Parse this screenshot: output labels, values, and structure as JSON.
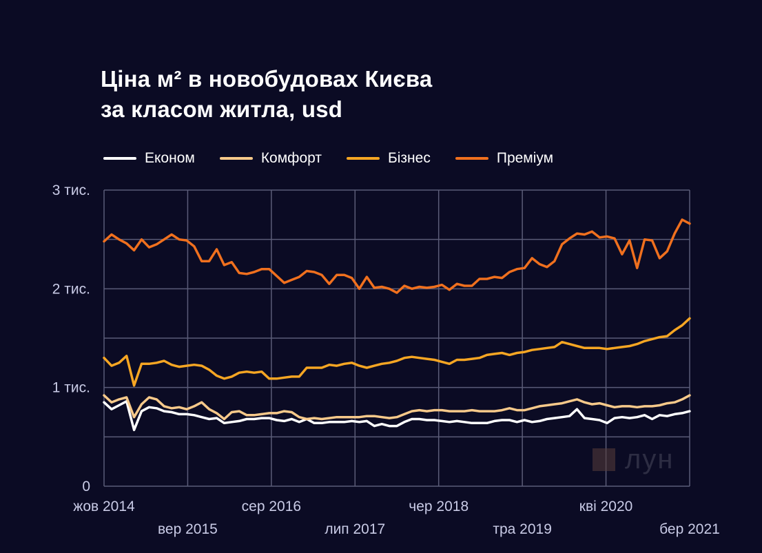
{
  "title": {
    "line1": "Ціна м² в новобудовах Києва",
    "line2": "за класом житла, usd"
  },
  "watermark": {
    "text": "лун"
  },
  "colors": {
    "background": "#0b0b24",
    "grid": "#5b5c78",
    "economy": "#ffffff",
    "comfort": "#f7c98a",
    "business": "#f6a623",
    "premium": "#f0701e"
  },
  "chart_data": {
    "type": "line",
    "title": "Ціна м² в новобудовах Києва за класом житла, usd",
    "x_start": "жов 2014",
    "x_end": "бер 2021",
    "x_tick_labels_top": [
      "жов 2014",
      "сер 2016",
      "чер 2018",
      "кві 2020"
    ],
    "x_tick_labels_bottom": [
      "вер 2015",
      "лип 2017",
      "тра 2019",
      "бер 2021"
    ],
    "y_ticks": [
      {
        "value": 0,
        "label": "0"
      },
      {
        "value": 1000,
        "label": "1 тис."
      },
      {
        "value": 2000,
        "label": "2 тис."
      },
      {
        "value": 3000,
        "label": "3 тис."
      }
    ],
    "ylim": [
      0,
      3000
    ],
    "grid": true,
    "legend_position": "top-left",
    "series": [
      {
        "name": "Економ",
        "color": "#ffffff",
        "values": [
          850,
          780,
          820,
          860,
          570,
          760,
          800,
          790,
          760,
          750,
          730,
          730,
          720,
          700,
          680,
          690,
          640,
          650,
          660,
          680,
          680,
          690,
          690,
          670,
          660,
          680,
          650,
          680,
          640,
          640,
          650,
          650,
          650,
          660,
          650,
          660,
          610,
          630,
          610,
          610,
          650,
          680,
          680,
          670,
          670,
          660,
          650,
          660,
          650,
          640,
          640,
          640,
          660,
          670,
          670,
          650,
          670,
          650,
          660,
          680,
          690,
          700,
          710,
          780,
          690,
          680,
          670,
          640,
          690,
          700,
          690,
          700,
          720,
          680,
          720,
          710,
          730,
          740,
          760
        ]
      },
      {
        "name": "Комфорт",
        "color": "#f7c98a",
        "values": [
          920,
          850,
          880,
          900,
          700,
          830,
          900,
          880,
          810,
          790,
          800,
          780,
          810,
          850,
          780,
          740,
          680,
          750,
          760,
          720,
          720,
          730,
          740,
          740,
          760,
          750,
          700,
          680,
          690,
          680,
          690,
          700,
          700,
          700,
          700,
          710,
          710,
          700,
          690,
          700,
          730,
          760,
          770,
          760,
          770,
          770,
          760,
          760,
          760,
          770,
          760,
          760,
          760,
          770,
          790,
          770,
          770,
          790,
          810,
          820,
          830,
          840,
          860,
          880,
          850,
          830,
          840,
          820,
          800,
          810,
          810,
          800,
          810,
          810,
          820,
          840,
          850,
          880,
          920
        ]
      },
      {
        "name": "Бізнес",
        "color": "#f6a623",
        "values": [
          1300,
          1220,
          1250,
          1320,
          1020,
          1240,
          1240,
          1250,
          1270,
          1230,
          1210,
          1220,
          1230,
          1220,
          1180,
          1120,
          1090,
          1110,
          1150,
          1160,
          1150,
          1160,
          1090,
          1090,
          1100,
          1110,
          1110,
          1200,
          1200,
          1200,
          1230,
          1220,
          1240,
          1250,
          1220,
          1200,
          1220,
          1240,
          1250,
          1270,
          1300,
          1310,
          1300,
          1290,
          1280,
          1260,
          1240,
          1280,
          1280,
          1290,
          1300,
          1330,
          1340,
          1350,
          1330,
          1350,
          1360,
          1380,
          1390,
          1400,
          1410,
          1460,
          1440,
          1420,
          1400,
          1400,
          1400,
          1390,
          1400,
          1410,
          1420,
          1440,
          1470,
          1490,
          1510,
          1520,
          1580,
          1630,
          1700
        ]
      },
      {
        "name": "Преміум",
        "color": "#f0701e",
        "values": [
          2480,
          2550,
          2500,
          2460,
          2390,
          2500,
          2420,
          2450,
          2500,
          2550,
          2500,
          2490,
          2430,
          2280,
          2280,
          2400,
          2240,
          2270,
          2160,
          2150,
          2170,
          2200,
          2200,
          2130,
          2060,
          2090,
          2120,
          2180,
          2170,
          2140,
          2050,
          2140,
          2140,
          2110,
          2000,
          2120,
          2010,
          2020,
          2000,
          1960,
          2030,
          2000,
          2020,
          2010,
          2020,
          2040,
          1990,
          2050,
          2030,
          2030,
          2100,
          2100,
          2120,
          2110,
          2170,
          2200,
          2210,
          2310,
          2250,
          2220,
          2280,
          2450,
          2510,
          2560,
          2550,
          2580,
          2520,
          2530,
          2510,
          2350,
          2490,
          2210,
          2500,
          2490,
          2310,
          2380,
          2560,
          2700,
          2660
        ]
      }
    ]
  }
}
